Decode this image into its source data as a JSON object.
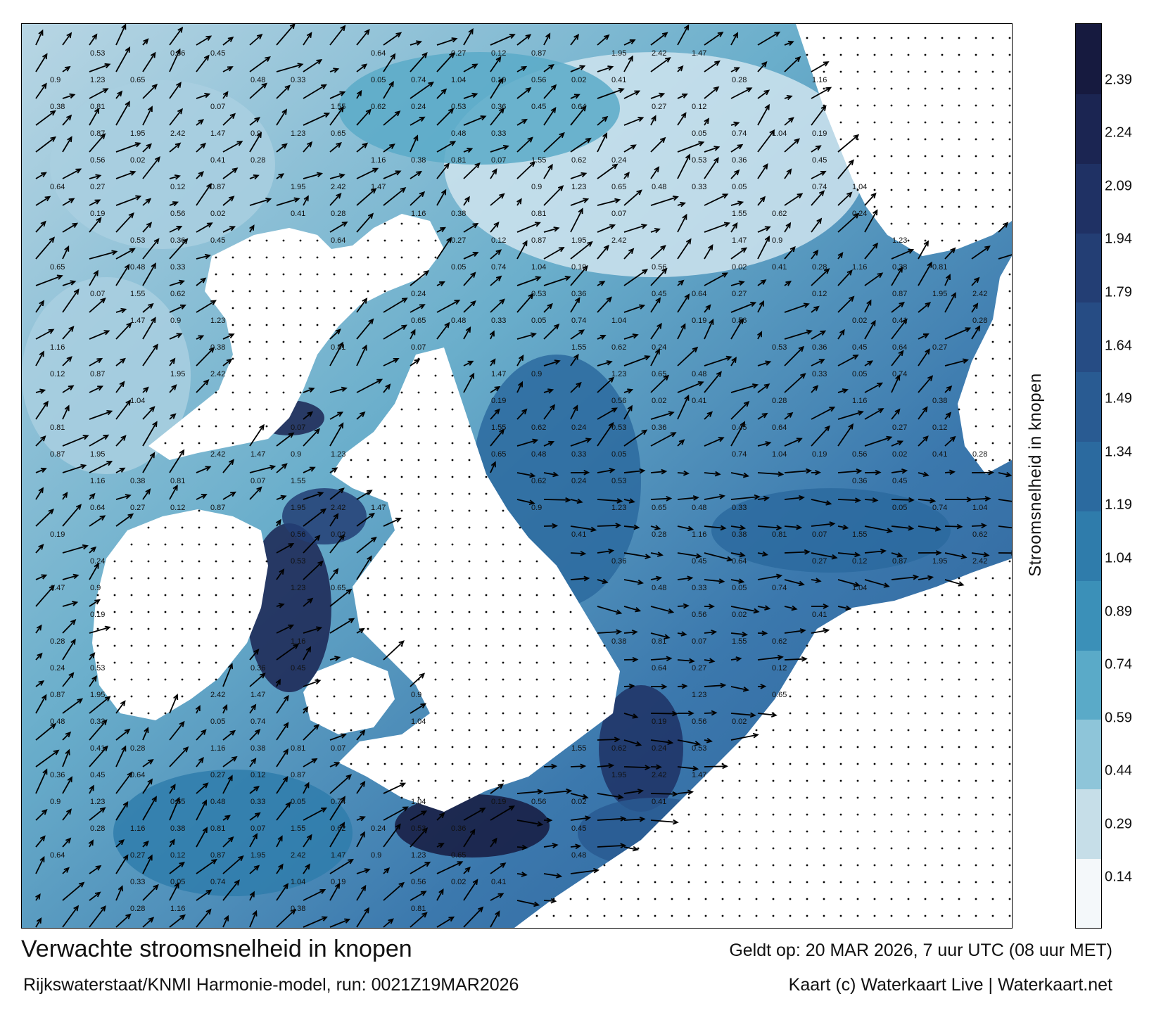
{
  "title": "Verwachte stroomsnelheid in knopen",
  "subtitle": "Rijkswaterstaat/KNMI Harmonie-model, run: 0021Z19MAR2026",
  "valid_time": "Geldt op: 20 MAR 2026, 7 uur UTC (08 uur MET)",
  "credit": "Kaart (c) Waterkaart Live | Waterkaart.net",
  "colorbar": {
    "label": "Stroomsnelheid in knopen",
    "ticks": [
      "2.39",
      "2.24",
      "2.09",
      "1.94",
      "1.79",
      "1.64",
      "1.49",
      "1.34",
      "1.19",
      "1.04",
      "0.89",
      "0.74",
      "0.59",
      "0.44",
      "0.29",
      "0.14"
    ],
    "min": 0,
    "max": 2.55,
    "colors": [
      "#f4f8fa",
      "#c6dee8",
      "#8ec5d9",
      "#5aaac8",
      "#3b90b8",
      "#2f7cab",
      "#2b6a9f",
      "#295b92",
      "#264c84",
      "#233e74",
      "#1f3164",
      "#1b2552",
      "#161a3f"
    ]
  },
  "map": {
    "land_color": "#ffffff",
    "arrow_color": "#000000",
    "sample_labels": [
      "0.53",
      "0.36",
      "0.45",
      "0.64",
      "0.27",
      "0.12",
      "0.87",
      "1.95",
      "2.42",
      "1.47",
      "0.9",
      "1.23",
      "0.65",
      "0.48",
      "0.33",
      "0.05",
      "0.74",
      "1.04",
      "0.19",
      "0.56",
      "0.02",
      "0.41",
      "0.28",
      "1.16",
      "0.38",
      "0.81",
      "0.07",
      "1.55",
      "0.62",
      "0.24"
    ]
  }
}
